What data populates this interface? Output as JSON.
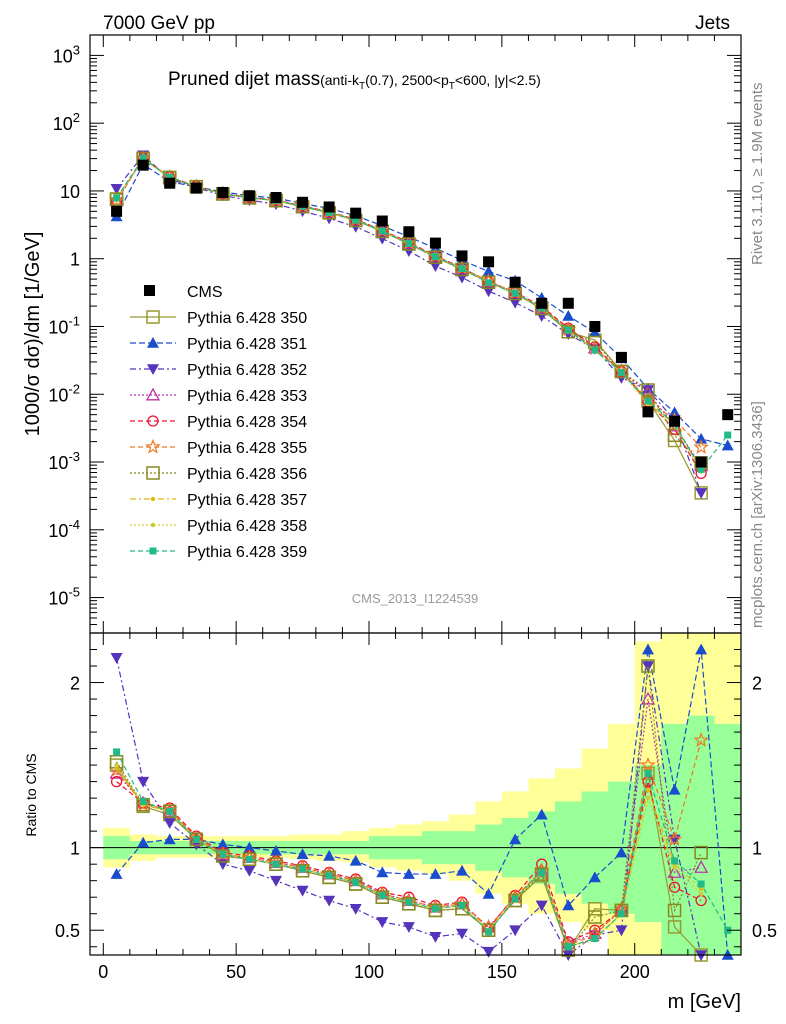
{
  "header": {
    "left": "7000 GeV pp",
    "right": "Jets"
  },
  "plot_title": {
    "main": "Pruned dijet mass",
    "sub_prefix": "(anti-k",
    "sub_subscript": "T",
    "sub_mid": "(0.7), 2500<p",
    "sub_subscript2": "T",
    "sub_suffix": "<600, |y|<2.5)"
  },
  "side_labels": {
    "rivet": "Rivet 3.1.10, ≥ 1.9M events",
    "mcplots": "mcplots.cern.ch [arXiv:1306.3436]"
  },
  "watermark": "CMS_2013_I1224539",
  "ylabel_main": "1000/σ dσ)/dm [1/GeV]",
  "ylabel_ratio": "Ratio to CMS",
  "xlabel": "m [GeV]",
  "colors": {
    "data": "#000000",
    "band_yellow": "#ffff99",
    "band_green": "#99ff99",
    "p350": "#999933",
    "p351": "#1a4dcc",
    "p352": "#5533bb",
    "p353": "#bb33aa",
    "p354": "#ee1133",
    "p355": "#ee7722",
    "p356": "#888822",
    "p357": "#ddbb11",
    "p358": "#cccc33",
    "p359": "#22bb88"
  },
  "chart_data": {
    "type": "line",
    "x": [
      5,
      15,
      25,
      35,
      45,
      55,
      65,
      75,
      85,
      95,
      105,
      115,
      125,
      135,
      145,
      155,
      165,
      175,
      185,
      195,
      205,
      215,
      225,
      235
    ],
    "xlim": [
      -5,
      240
    ],
    "xticks": [
      0,
      50,
      100,
      150,
      200
    ],
    "main_ylim": [
      3e-06,
      2000
    ],
    "main_log": true,
    "main_yticks": [
      "10^{-5}",
      "10^{-4}",
      "10^{-3}",
      "10^{-2}",
      "10^{-1}",
      "1",
      "10",
      "10^{2}",
      "10^{3}"
    ],
    "ratio_ylim": [
      0.35,
      2.3
    ],
    "ratio_yticks": [
      0.5,
      1,
      2
    ],
    "legend_position": "middle-left",
    "data": {
      "name": "CMS",
      "values": [
        5.0,
        24,
        13,
        11,
        9.5,
        8.5,
        8,
        6.8,
        5.8,
        4.7,
        3.6,
        2.5,
        1.7,
        1.1,
        0.9,
        0.45,
        0.22,
        0.22,
        0.1,
        0.035,
        0.0055,
        0.004,
        0.001,
        0.005
      ]
    },
    "bands": {
      "green_lo": [
        0.93,
        0.96,
        0.96,
        0.96,
        0.96,
        0.96,
        0.96,
        0.96,
        0.96,
        0.96,
        0.93,
        0.93,
        0.9,
        0.9,
        0.86,
        0.82,
        0.78,
        0.72,
        0.66,
        0.6,
        0.55,
        0.35,
        0.35,
        0.35
      ],
      "green_hi": [
        1.07,
        1.04,
        1.04,
        1.04,
        1.04,
        1.04,
        1.04,
        1.04,
        1.04,
        1.04,
        1.07,
        1.07,
        1.1,
        1.1,
        1.14,
        1.18,
        1.22,
        1.28,
        1.34,
        1.4,
        1.5,
        1.75,
        1.8,
        1.75
      ],
      "yellow_lo": [
        0.88,
        0.92,
        0.94,
        0.94,
        0.94,
        0.94,
        0.94,
        0.93,
        0.92,
        0.91,
        0.88,
        0.86,
        0.84,
        0.8,
        0.72,
        0.66,
        0.6,
        0.55,
        0.5,
        0.35,
        0.35,
        0.35,
        0.35,
        0.35
      ],
      "yellow_hi": [
        1.12,
        1.08,
        1.07,
        1.07,
        1.07,
        1.07,
        1.07,
        1.08,
        1.08,
        1.1,
        1.12,
        1.14,
        1.16,
        1.2,
        1.28,
        1.34,
        1.42,
        1.48,
        1.6,
        1.75,
        2.25,
        2.3,
        2.3,
        2.3
      ]
    },
    "series": [
      {
        "name": "Pythia 6.428 350",
        "key": "p350",
        "dash": "",
        "marker": "square-open",
        "ratio": [
          1.5,
          1.25,
          1.2,
          1.05,
          0.95,
          0.93,
          0.9,
          0.86,
          0.82,
          0.78,
          0.7,
          0.66,
          0.62,
          0.63,
          0.5,
          0.68,
          0.83,
          0.38,
          0.63,
          0.62,
          1.45,
          0.52,
          0.35,
          null
        ]
      },
      {
        "name": "Pythia 6.428 351",
        "key": "p351",
        "dash": "6,3",
        "marker": "triangle-up",
        "ratio": [
          0.84,
          1.03,
          1.05,
          1.05,
          1.02,
          1.0,
          0.98,
          0.96,
          0.95,
          0.92,
          0.85,
          0.84,
          0.84,
          0.86,
          0.72,
          1.05,
          1.2,
          0.65,
          0.82,
          0.97,
          2.2,
          1.35,
          2.2,
          0.35
        ]
      },
      {
        "name": "Pythia 6.428 352",
        "key": "p352",
        "dash": "6,3,2,3",
        "marker": "triangle-down",
        "ratio": [
          2.15,
          1.4,
          1.15,
          1.02,
          0.9,
          0.86,
          0.8,
          0.74,
          0.68,
          0.63,
          0.55,
          0.52,
          0.46,
          0.48,
          0.37,
          0.5,
          0.65,
          0.35,
          0.47,
          0.5,
          2.1,
          1.05,
          0.35,
          null
        ]
      },
      {
        "name": "Pythia 6.428 353",
        "key": "p353",
        "dash": "2,2",
        "marker": "triangle-open",
        "ratio": [
          1.45,
          1.27,
          1.22,
          1.06,
          0.96,
          0.94,
          0.91,
          0.88,
          0.84,
          0.8,
          0.72,
          0.68,
          0.64,
          0.66,
          0.52,
          0.7,
          0.86,
          0.42,
          0.48,
          0.62,
          1.9,
          0.85,
          0.88,
          null
        ]
      },
      {
        "name": "Pythia 6.428 354",
        "key": "p354",
        "dash": "5,3",
        "marker": "circle-open",
        "ratio": [
          1.4,
          1.27,
          1.24,
          1.07,
          0.97,
          0.95,
          0.92,
          0.89,
          0.85,
          0.81,
          0.73,
          0.7,
          0.65,
          0.67,
          0.51,
          0.71,
          0.9,
          0.43,
          0.5,
          0.62,
          1.4,
          0.76,
          0.68,
          null
        ]
      },
      {
        "name": "Pythia 6.428 355",
        "key": "p355",
        "dash": "5,3",
        "marker": "star-open",
        "ratio": [
          1.47,
          1.26,
          1.23,
          1.06,
          0.96,
          0.94,
          0.91,
          0.88,
          0.84,
          0.8,
          0.72,
          0.68,
          0.64,
          0.66,
          0.52,
          0.7,
          0.86,
          0.41,
          0.47,
          0.63,
          1.5,
          1.05,
          1.65,
          null
        ]
      },
      {
        "name": "Pythia 6.428 356",
        "key": "p356",
        "dash": "2,2",
        "marker": "square-open",
        "ratio": [
          1.52,
          1.26,
          1.22,
          1.05,
          0.95,
          0.93,
          0.9,
          0.86,
          0.82,
          0.78,
          0.7,
          0.66,
          0.62,
          0.63,
          0.5,
          0.68,
          0.84,
          0.38,
          0.58,
          0.62,
          2.1,
          0.62,
          0.97,
          null
        ]
      },
      {
        "name": "Pythia 6.428 357",
        "key": "p357",
        "dash": "6,3,2,3",
        "marker": "dot",
        "ratio": [
          1.48,
          1.26,
          1.22,
          1.05,
          0.96,
          0.93,
          0.9,
          0.87,
          0.83,
          0.79,
          0.71,
          0.67,
          0.63,
          0.65,
          0.5,
          0.69,
          0.85,
          0.4,
          0.45,
          0.6,
          1.35,
          0.9,
          0.75,
          null
        ]
      },
      {
        "name": "Pythia 6.428 358",
        "key": "p358",
        "dash": "2,2",
        "marker": "dot",
        "ratio": [
          1.5,
          1.26,
          1.22,
          1.05,
          0.96,
          0.93,
          0.9,
          0.87,
          0.83,
          0.79,
          0.71,
          0.67,
          0.63,
          0.65,
          0.5,
          0.69,
          0.85,
          0.4,
          0.44,
          0.6,
          1.3,
          0.88,
          0.72,
          null
        ]
      },
      {
        "name": "Pythia 6.428 359",
        "key": "p359",
        "dash": "5,3",
        "marker": "square-filled",
        "ratio": [
          1.58,
          1.28,
          1.22,
          1.05,
          0.96,
          0.93,
          0.9,
          0.87,
          0.83,
          0.79,
          0.71,
          0.67,
          0.63,
          0.65,
          0.49,
          0.69,
          0.85,
          0.4,
          0.45,
          0.6,
          1.45,
          0.92,
          0.78,
          0.5
        ]
      }
    ]
  }
}
